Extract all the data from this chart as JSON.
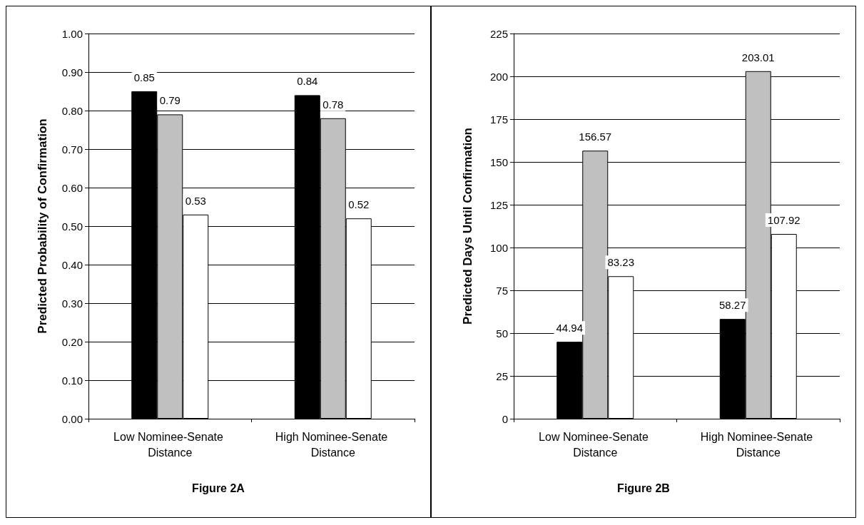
{
  "chart_data": [
    {
      "type": "bar",
      "title": "Figure 2A",
      "ylabel": "Predicted Probability of Confirmation",
      "categories": [
        "Low Nominee-Senate Distance",
        "High Nominee-Senate Distance"
      ],
      "series": [
        {
          "color": "#000000",
          "values": [
            0.85,
            0.84
          ]
        },
        {
          "color": "#c0c0c0",
          "values": [
            0.79,
            0.78
          ]
        },
        {
          "color": "#ffffff",
          "values": [
            0.53,
            0.52
          ]
        }
      ],
      "ylim": [
        0,
        1
      ],
      "yticks": [
        {
          "value": 0,
          "label": "0.00"
        },
        {
          "value": 0.1,
          "label": "0.10"
        },
        {
          "value": 0.2,
          "label": "0.20"
        },
        {
          "value": 0.3,
          "label": "0.30"
        },
        {
          "value": 0.4,
          "label": "0.40"
        },
        {
          "value": 0.5,
          "label": "0.50"
        },
        {
          "value": 0.6,
          "label": "0.60"
        },
        {
          "value": 0.7,
          "label": "0.70"
        },
        {
          "value": 0.8,
          "label": "0.80"
        },
        {
          "value": 0.9,
          "label": "0.90"
        },
        {
          "value": 1,
          "label": "1.00"
        }
      ],
      "grid": "y",
      "data_labels": true
    },
    {
      "type": "bar",
      "title": "Figure 2B",
      "ylabel": "Predicted Days Until Confirmation",
      "categories": [
        "Low Nominee-Senate Distance",
        "High Nominee-Senate Distance"
      ],
      "series": [
        {
          "color": "#000000",
          "values": [
            44.94,
            58.27
          ]
        },
        {
          "color": "#c0c0c0",
          "values": [
            156.57,
            203.01
          ]
        },
        {
          "color": "#ffffff",
          "values": [
            83.23,
            107.92
          ]
        }
      ],
      "ylim": [
        0,
        225
      ],
      "yticks": [
        0,
        25,
        50,
        75,
        100,
        125,
        150,
        175,
        200,
        225
      ],
      "grid": "y",
      "data_labels": true
    }
  ]
}
